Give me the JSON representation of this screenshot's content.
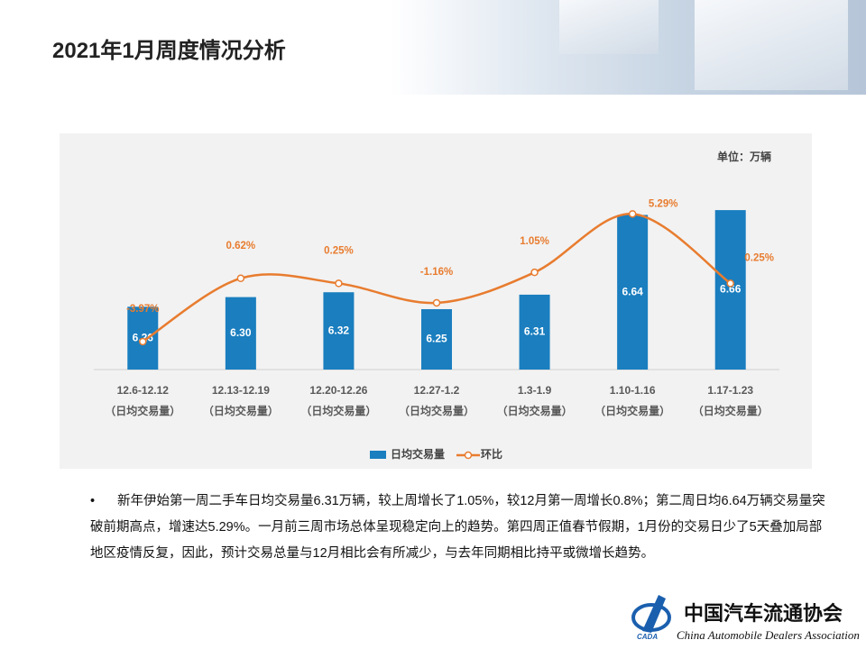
{
  "header": {
    "title": "2021年1月周度情况分析"
  },
  "chart_data": {
    "type": "combo",
    "unit": "单位：万辆",
    "categories": [
      "12.6-12.12",
      "12.13-12.19",
      "12.20-12.26",
      "12.27-1.2",
      "1.3-1.9",
      "1.10-1.16",
      "1.17-1.23"
    ],
    "category_sublabel": "（日均交易量）",
    "ylim": [
      6.0,
      6.97
    ],
    "y2lim": [
      -6,
      11
    ],
    "series": [
      {
        "name": "日均交易量",
        "type": "bar",
        "color": "#1a7ebf",
        "values": [
          6.26,
          6.3,
          6.32,
          6.25,
          6.31,
          6.64,
          6.66
        ],
        "value_labels": [
          "6.26",
          "6.30",
          "6.32",
          "6.25",
          "6.31",
          "6.64",
          "6.66"
        ]
      },
      {
        "name": "环比",
        "type": "line",
        "axis": "y2",
        "color": "#e87c2f",
        "values": [
          -3.97,
          0.62,
          0.25,
          -1.16,
          1.05,
          5.29,
          0.25
        ],
        "value_labels": [
          "-3.97%",
          "0.62%",
          "0.25%",
          "-1.16%",
          "1.05%",
          "5.29%",
          "0.25%"
        ]
      }
    ]
  },
  "body": {
    "bullet": "•",
    "paragraph": "新年伊始第一周二手车日均交易量6.31万辆，较上周增长了1.05%，较12月第一周增长0.8%；第二周日均6.64万辆交易量突破前期高点，增速达5.29%。一月前三周市场总体呈现稳定向上的趋势。第四周正值春节假期，1月份的交易日少了5天叠加局部地区疫情反复，因此，预计交易总量与12月相比会有所减少，与去年同期相比持平或微增长趋势。"
  },
  "logo": {
    "abbr": "CADA",
    "name_cn": "中国汽车流通协会",
    "name_en": "China Automobile Dealers Association"
  }
}
